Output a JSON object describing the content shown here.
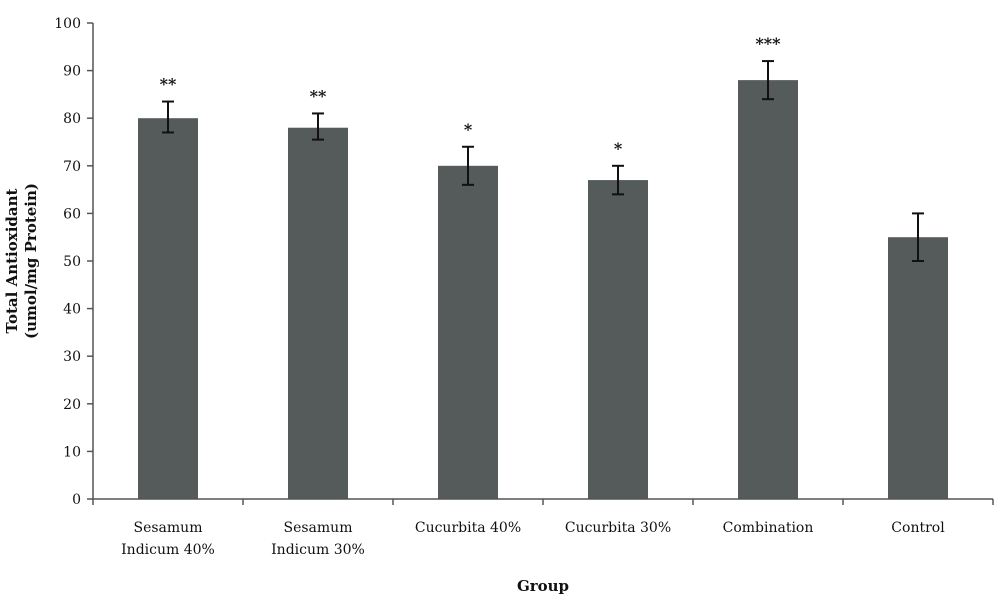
{
  "chart_data": {
    "type": "bar",
    "categories": [
      [
        "Sesamum",
        "Indicum 40%"
      ],
      [
        "Sesamum",
        "Indicum 30%"
      ],
      [
        "Cucurbita 40%"
      ],
      [
        "Cucurbita 30%"
      ],
      [
        "Combination"
      ],
      [
        "Control"
      ]
    ],
    "values": [
      80,
      78,
      70,
      67,
      88,
      55
    ],
    "error_low": [
      77,
      75.5,
      66,
      64,
      84,
      50
    ],
    "error_high": [
      83.5,
      81,
      74,
      70,
      92,
      60
    ],
    "significance": [
      "**",
      "**",
      "*",
      "*",
      "***",
      ""
    ],
    "ylim": [
      0,
      100
    ],
    "yticks": [
      0,
      10,
      20,
      30,
      40,
      50,
      60,
      70,
      80,
      90,
      100
    ],
    "ylabel": [
      "Total Antioxidant",
      "(umol/mg Protein)"
    ],
    "xlabel": "Group",
    "bar_color": "#545b5a",
    "grid": false
  }
}
